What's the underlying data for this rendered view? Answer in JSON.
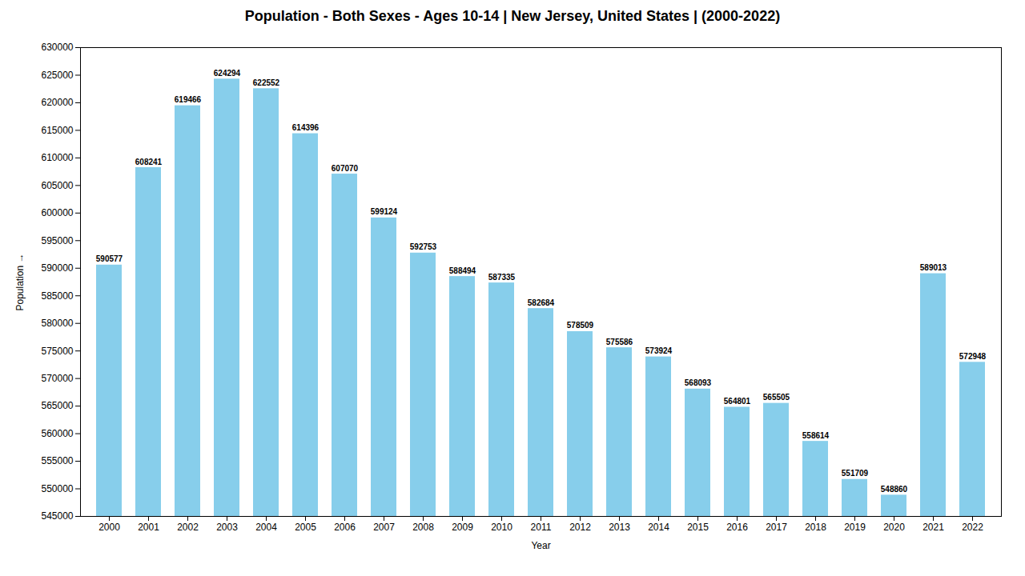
{
  "chart_data": {
    "type": "bar",
    "title": "Population - Both Sexes - Ages 10-14 | New Jersey, United States |  (2000-2022)",
    "xlabel": "Year",
    "ylabel": "Population",
    "categories": [
      "2000",
      "2001",
      "2002",
      "2003",
      "2004",
      "2005",
      "2006",
      "2007",
      "2008",
      "2009",
      "2010",
      "2011",
      "2012",
      "2013",
      "2014",
      "2015",
      "2016",
      "2017",
      "2018",
      "2019",
      "2020",
      "2021",
      "2022"
    ],
    "values": [
      590577,
      608241,
      619466,
      624294,
      622552,
      614396,
      607070,
      599124,
      592753,
      588494,
      587335,
      582684,
      578509,
      575586,
      573924,
      568093,
      564801,
      565505,
      558614,
      551709,
      548860,
      589013,
      572948
    ],
    "color": "#87CEEB",
    "ylim": [
      545000,
      630000
    ],
    "yticks": [
      545000,
      550000,
      555000,
      560000,
      565000,
      570000,
      575000,
      580000,
      585000,
      590000,
      595000,
      600000,
      605000,
      610000,
      615000,
      620000,
      625000,
      630000
    ],
    "grid": false,
    "data_labels": true
  }
}
